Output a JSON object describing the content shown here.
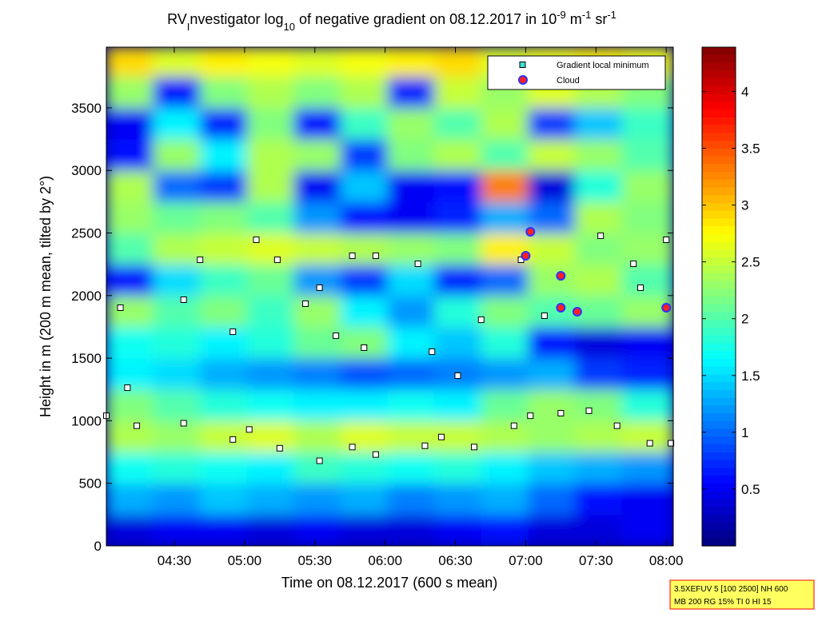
{
  "chart_data": {
    "type": "heatmap",
    "title": [
      {
        "text": "RV"
      },
      {
        "text": "I",
        "script": "sub"
      },
      {
        "text": "nvestigator log"
      },
      {
        "text": "10",
        "script": "sub"
      },
      {
        "text": " of negative gradient on 08.12.2017 in 10"
      },
      {
        "text": "-9",
        "script": "sup"
      },
      {
        "text": " m"
      },
      {
        "text": "-1",
        "script": "sup"
      },
      {
        "text": " sr"
      },
      {
        "text": "-1",
        "script": "sup"
      }
    ],
    "xlabel": "Time on 08.12.2017 (600 s mean)",
    "ylabel": "Height in m (200 m mean, tilted by 2°)",
    "xlim": [
      241,
      483
    ],
    "xticks": [
      {
        "value": 270,
        "label": "04:30"
      },
      {
        "value": 300,
        "label": "05:00"
      },
      {
        "value": 330,
        "label": "05:30"
      },
      {
        "value": 360,
        "label": "06:00"
      },
      {
        "value": 390,
        "label": "06:30"
      },
      {
        "value": 420,
        "label": "07:00"
      },
      {
        "value": 450,
        "label": "07:30"
      },
      {
        "value": 480,
        "label": "08:00"
      }
    ],
    "ylim": [
      0,
      3985
    ],
    "yticks": [
      0,
      500,
      1000,
      1500,
      2000,
      2500,
      3000,
      3500
    ],
    "colormap": "jet",
    "clim": [
      0,
      4.39
    ],
    "cticks": [
      0.5,
      1,
      1.5,
      2,
      2.5,
      3,
      3.5,
      4
    ],
    "x_bins": [
      241,
      261,
      281,
      301,
      321,
      341,
      361,
      381,
      401,
      421,
      441,
      461,
      483
    ],
    "y_bins": [
      0,
      250,
      500,
      750,
      1000,
      1250,
      1500,
      1750,
      2000,
      2250,
      2500,
      2750,
      3000,
      3250,
      3500,
      3750,
      3985
    ],
    "z": [
      [
        0.4,
        0.5,
        0.5,
        0.4,
        0.5,
        0.4,
        0.4,
        0.5,
        0.6,
        0.4,
        0.4,
        0.5
      ],
      [
        1.3,
        1.2,
        1.4,
        1.3,
        1.2,
        1.3,
        1.1,
        1.2,
        1.3,
        1.0,
        0.6,
        0.5
      ],
      [
        1.7,
        1.8,
        1.7,
        1.6,
        1.9,
        1.8,
        1.7,
        1.8,
        1.6,
        1.4,
        1.3,
        1.2
      ],
      [
        2.4,
        2.3,
        2.5,
        2.6,
        2.4,
        2.6,
        2.5,
        2.5,
        2.4,
        2.3,
        2.4,
        2.5
      ],
      [
        2.2,
        2.0,
        1.8,
        1.7,
        1.6,
        1.6,
        1.7,
        1.6,
        2.1,
        2.3,
        2.2,
        1.8
      ],
      [
        1.6,
        1.5,
        1.3,
        1.2,
        1.1,
        0.9,
        1.0,
        1.1,
        1.2,
        1.3,
        0.8,
        0.7
      ],
      [
        1.7,
        1.8,
        1.6,
        1.8,
        2.1,
        2.2,
        1.6,
        1.4,
        1.8,
        0.6,
        0.4,
        0.5
      ],
      [
        2.3,
        2.0,
        2.2,
        1.9,
        2.3,
        1.6,
        1.2,
        1.8,
        2.2,
        2.0,
        2.1,
        2.3
      ],
      [
        0.6,
        1.5,
        1.9,
        2.1,
        1.2,
        0.8,
        1.5,
        0.7,
        1.0,
        2.3,
        2.4,
        2.0
      ],
      [
        2.0,
        2.4,
        2.5,
        2.6,
        2.5,
        2.4,
        2.3,
        2.2,
        2.8,
        2.5,
        2.2,
        2.3
      ],
      [
        2.3,
        2.1,
        2.2,
        2.0,
        1.2,
        0.6,
        0.5,
        0.7,
        1.3,
        1.0,
        2.4,
        2.2
      ],
      [
        2.4,
        1.0,
        0.8,
        2.4,
        0.5,
        1.4,
        0.5,
        0.6,
        3.3,
        0.4,
        1.8,
        2.3
      ],
      [
        0.6,
        2.3,
        1.6,
        2.4,
        2.3,
        0.8,
        2.2,
        2.4,
        2.0,
        2.5,
        2.3,
        2.0
      ],
      [
        0.5,
        1.6,
        0.7,
        2.2,
        0.6,
        1.9,
        2.3,
        2.0,
        2.4,
        0.8,
        1.4,
        1.9
      ],
      [
        2.3,
        0.6,
        2.2,
        2.4,
        2.2,
        2.4,
        0.7,
        2.5,
        2.3,
        2.6,
        2.4,
        2.2
      ],
      [
        2.9,
        2.6,
        2.8,
        2.7,
        2.6,
        2.7,
        2.8,
        2.9,
        2.6,
        2.7,
        2.8,
        2.7
      ]
    ],
    "legend": "upper right",
    "series": [
      {
        "name": "Gradient local minimum",
        "color": "#40e0d0",
        "marker": "square",
        "marker_fill": "#ffffff",
        "x": [
          241,
          254,
          274,
          295,
          302,
          315,
          332,
          346,
          356,
          377,
          384,
          398,
          415,
          422,
          435,
          447,
          459,
          473,
          482,
          247,
          281,
          305,
          314,
          326,
          332,
          346,
          356,
          374,
          380,
          351,
          339,
          295,
          401,
          418,
          428,
          452,
          466,
          469,
          480,
          274,
          250,
          391
        ],
        "values": [
          1040,
          960,
          980,
          850,
          930,
          780,
          680,
          790,
          730,
          800,
          870,
          790,
          960,
          1040,
          1060,
          1080,
          960,
          820,
          820,
          1903,
          2286,
          2446,
          2286,
          1935,
          2063,
          2318,
          2318,
          2254,
          1552,
          1584,
          1679,
          1711,
          1807,
          2286,
          1839,
          2478,
          2254,
          2063,
          2446,
          1967,
          1264,
          1360
        ]
      },
      {
        "name": "Cloud",
        "color": "#ff2020",
        "marker": "circle",
        "edge_color": "#3030ff",
        "x": [
          420,
          435,
          435,
          442,
          480,
          422
        ],
        "values": [
          2318,
          2158,
          1903,
          1871,
          1903,
          2510
        ]
      }
    ],
    "info_box": [
      "3.5XEFUV 5 [100 2500] NH 600",
      "MB 200 RG 15% TI 0 HI 15"
    ]
  }
}
